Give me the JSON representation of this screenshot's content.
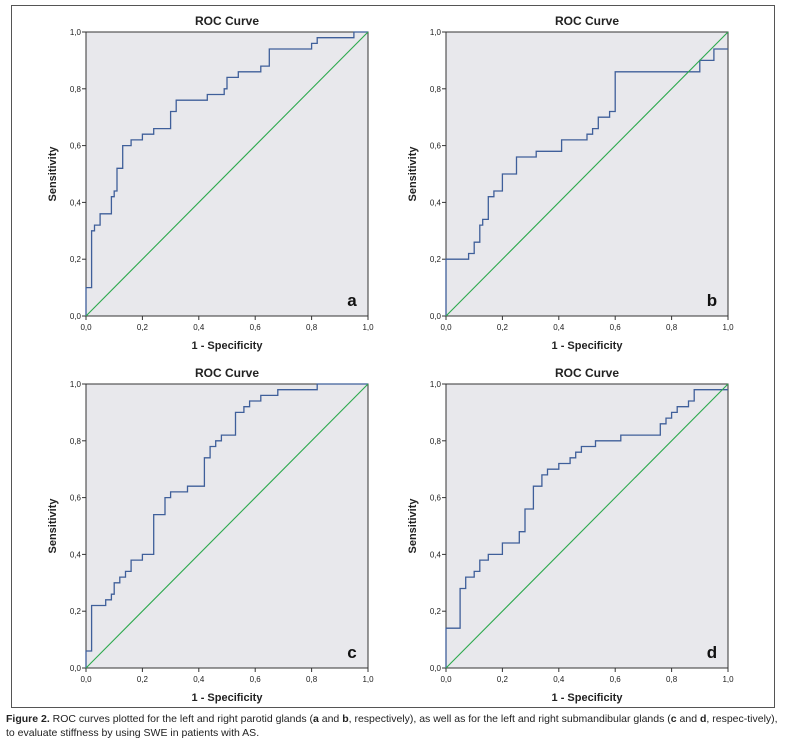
{
  "chart_data": [
    {
      "type": "line",
      "title": "ROC Curve",
      "xlabel": "1 - Specificity",
      "ylabel": "Sensitivity",
      "panel_label": "a",
      "xlim": [
        0,
        1
      ],
      "ylim": [
        0,
        1
      ],
      "ticks": [
        "0,0",
        "0,2",
        "0,4",
        "0,6",
        "0,8",
        "1,0"
      ],
      "grid": false,
      "series": [
        {
          "kind": "roc",
          "color": "#3f5f9a",
          "x": [
            0,
            0,
            0.02,
            0.02,
            0.03,
            0.03,
            0.05,
            0.05,
            0.06,
            0.06,
            0.07,
            0.07,
            0.09,
            0.09,
            0.1,
            0.1,
            0.11,
            0.11,
            0.13,
            0.13,
            0.15,
            0.15,
            0.16,
            0.16,
            0.19,
            0.19,
            0.2,
            0.2,
            0.24,
            0.24,
            0.3,
            0.3,
            0.32,
            0.32,
            0.4,
            0.4,
            0.43,
            0.43,
            0.49,
            0.49,
            0.5,
            0.5,
            0.54,
            0.54,
            0.62,
            0.62,
            0.65,
            0.65,
            0.8,
            0.8,
            0.82,
            0.82,
            0.95,
            0.95,
            1
          ],
          "y": [
            0,
            0.1,
            0.1,
            0.3,
            0.3,
            0.32,
            0.32,
            0.36,
            0.36,
            0.36,
            0.36,
            0.36,
            0.36,
            0.42,
            0.42,
            0.44,
            0.44,
            0.52,
            0.52,
            0.6,
            0.6,
            0.6,
            0.6,
            0.62,
            0.62,
            0.62,
            0.62,
            0.64,
            0.64,
            0.66,
            0.66,
            0.72,
            0.72,
            0.76,
            0.76,
            0.76,
            0.76,
            0.78,
            0.78,
            0.8,
            0.8,
            0.84,
            0.84,
            0.86,
            0.86,
            0.88,
            0.88,
            0.94,
            0.94,
            0.96,
            0.96,
            0.98,
            0.98,
            1,
            1
          ]
        },
        {
          "kind": "reference",
          "color": "#2da94e",
          "x": [
            0,
            1
          ],
          "y": [
            0,
            1
          ]
        }
      ]
    },
    {
      "type": "line",
      "title": "ROC Curve",
      "xlabel": "1 - Specificity",
      "ylabel": "Sensitivity",
      "panel_label": "b",
      "xlim": [
        0,
        1
      ],
      "ylim": [
        0,
        1
      ],
      "ticks": [
        "0,0",
        "0,2",
        "0,4",
        "0,6",
        "0,8",
        "1,0"
      ],
      "grid": false,
      "series": [
        {
          "kind": "roc",
          "color": "#3f5f9a",
          "x": [
            0,
            0,
            0.08,
            0.08,
            0.1,
            0.1,
            0.12,
            0.12,
            0.13,
            0.13,
            0.15,
            0.15,
            0.17,
            0.17,
            0.2,
            0.2,
            0.25,
            0.25,
            0.28,
            0.28,
            0.32,
            0.32,
            0.41,
            0.41,
            0.5,
            0.5,
            0.52,
            0.52,
            0.54,
            0.54,
            0.58,
            0.58,
            0.6,
            0.6,
            0.78,
            0.78,
            0.9,
            0.9,
            0.95,
            0.95,
            1
          ],
          "y": [
            0,
            0.2,
            0.2,
            0.22,
            0.22,
            0.26,
            0.26,
            0.32,
            0.32,
            0.34,
            0.34,
            0.42,
            0.42,
            0.44,
            0.44,
            0.5,
            0.5,
            0.56,
            0.56,
            0.56,
            0.56,
            0.58,
            0.58,
            0.62,
            0.62,
            0.64,
            0.64,
            0.66,
            0.66,
            0.7,
            0.7,
            0.72,
            0.72,
            0.86,
            0.86,
            0.86,
            0.86,
            0.9,
            0.9,
            0.94,
            0.94
          ]
        },
        {
          "kind": "reference",
          "color": "#2da94e",
          "x": [
            0,
            1
          ],
          "y": [
            0,
            1
          ]
        }
      ]
    },
    {
      "type": "line",
      "title": "ROC Curve",
      "xlabel": "1 - Specificity",
      "ylabel": "Sensitivity",
      "panel_label": "c",
      "xlim": [
        0,
        1
      ],
      "ylim": [
        0,
        1
      ],
      "ticks": [
        "0,0",
        "0,2",
        "0,4",
        "0,6",
        "0,8",
        "1,0"
      ],
      "grid": false,
      "series": [
        {
          "kind": "roc",
          "color": "#3f5f9a",
          "x": [
            0,
            0,
            0.02,
            0.02,
            0.07,
            0.07,
            0.09,
            0.09,
            0.1,
            0.1,
            0.12,
            0.12,
            0.14,
            0.14,
            0.16,
            0.16,
            0.2,
            0.2,
            0.24,
            0.24,
            0.28,
            0.28,
            0.3,
            0.3,
            0.32,
            0.32,
            0.36,
            0.36,
            0.42,
            0.42,
            0.44,
            0.44,
            0.46,
            0.46,
            0.48,
            0.48,
            0.5,
            0.5,
            0.53,
            0.53,
            0.56,
            0.56,
            0.58,
            0.58,
            0.62,
            0.62,
            0.68,
            0.68,
            0.82,
            0.82,
            0.88,
            0.88,
            1
          ],
          "y": [
            0,
            0.06,
            0.06,
            0.22,
            0.22,
            0.24,
            0.24,
            0.26,
            0.26,
            0.3,
            0.3,
            0.32,
            0.32,
            0.34,
            0.34,
            0.38,
            0.38,
            0.4,
            0.4,
            0.54,
            0.54,
            0.6,
            0.6,
            0.62,
            0.62,
            0.62,
            0.62,
            0.64,
            0.64,
            0.74,
            0.74,
            0.78,
            0.78,
            0.8,
            0.8,
            0.82,
            0.82,
            0.82,
            0.82,
            0.9,
            0.9,
            0.92,
            0.92,
            0.94,
            0.94,
            0.96,
            0.96,
            0.98,
            0.98,
            1,
            1,
            1,
            1
          ]
        },
        {
          "kind": "reference",
          "color": "#2da94e",
          "x": [
            0,
            1
          ],
          "y": [
            0,
            1
          ]
        }
      ]
    },
    {
      "type": "line",
      "title": "ROC Curve",
      "xlabel": "1 - Specificity",
      "ylabel": "Sensitivity",
      "panel_label": "d",
      "xlim": [
        0,
        1
      ],
      "ylim": [
        0,
        1
      ],
      "ticks": [
        "0,0",
        "0,2",
        "0,4",
        "0,6",
        "0,8",
        "1,0"
      ],
      "grid": false,
      "series": [
        {
          "kind": "roc",
          "color": "#3f5f9a",
          "x": [
            0,
            0,
            0.05,
            0.05,
            0.07,
            0.07,
            0.1,
            0.1,
            0.12,
            0.12,
            0.15,
            0.15,
            0.2,
            0.2,
            0.26,
            0.26,
            0.28,
            0.28,
            0.31,
            0.31,
            0.34,
            0.34,
            0.36,
            0.36,
            0.4,
            0.4,
            0.44,
            0.44,
            0.46,
            0.46,
            0.48,
            0.48,
            0.53,
            0.53,
            0.62,
            0.62,
            0.76,
            0.76,
            0.78,
            0.78,
            0.8,
            0.8,
            0.82,
            0.82,
            0.86,
            0.86,
            0.88,
            0.88,
            1
          ],
          "y": [
            0,
            0.14,
            0.14,
            0.28,
            0.28,
            0.32,
            0.32,
            0.34,
            0.34,
            0.38,
            0.38,
            0.4,
            0.4,
            0.44,
            0.44,
            0.48,
            0.48,
            0.56,
            0.56,
            0.64,
            0.64,
            0.68,
            0.68,
            0.7,
            0.7,
            0.72,
            0.72,
            0.74,
            0.74,
            0.76,
            0.76,
            0.78,
            0.78,
            0.8,
            0.8,
            0.82,
            0.82,
            0.86,
            0.86,
            0.88,
            0.88,
            0.9,
            0.9,
            0.92,
            0.92,
            0.94,
            0.94,
            0.98,
            0.98
          ]
        },
        {
          "kind": "reference",
          "color": "#2da94e",
          "x": [
            0,
            1
          ],
          "y": [
            0,
            1
          ]
        }
      ]
    }
  ],
  "caption": {
    "fig_label": "Figure 2.",
    "p1": " ROC curves plotted for the left and right parotid glands (",
    "a": "a",
    "and1": " and ",
    "b": "b",
    "p2": ", respectively), as well as for the left and right submandibular glands (",
    "c": "c",
    "and2": " and ",
    "d": "d",
    "p3": ", respec-tively), to evaluate stiffness by using SWE in patients with AS."
  },
  "colors": {
    "plot_bg": "#e8e8ec",
    "roc": "#3f5f9a",
    "reference": "#2da94e",
    "axis": "#333333"
  }
}
